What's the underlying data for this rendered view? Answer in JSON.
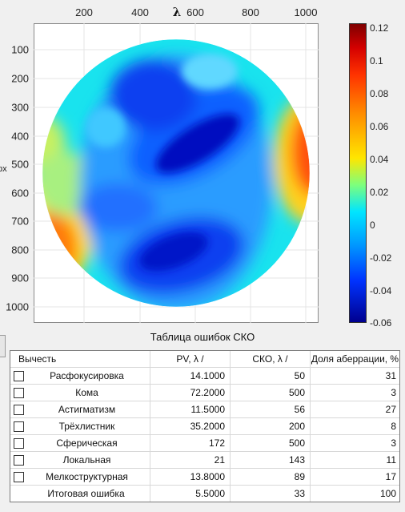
{
  "plot": {
    "x_axis_symbol": "λ",
    "left_axis_fragment": "px",
    "x_ticks": [
      "200",
      "400",
      "600",
      "800",
      "1000"
    ],
    "y_ticks": [
      "100",
      "200",
      "300",
      "400",
      "500",
      "600",
      "700",
      "800",
      "900",
      "1000"
    ],
    "colorbar_ticks": [
      "0.12",
      "0.1",
      "0.08",
      "0.06",
      "0.04",
      "0.02",
      "0",
      "-0.02",
      "-0.04",
      "-0.06"
    ],
    "colormap": "jet",
    "colorbar_range": [
      -0.06,
      0.12
    ],
    "x_range": [
      30,
      1080
    ],
    "y_range": [
      30,
      1080
    ]
  },
  "table": {
    "title": "Таблица ошибок СКО",
    "headers": [
      "Вычесть",
      "PV, λ /",
      "СКО, λ /",
      "Доля аберрации, %"
    ],
    "rows": [
      {
        "name": "Расфокусировка",
        "pv": "14.1000",
        "sko": "50",
        "share": "31"
      },
      {
        "name": "Кома",
        "pv": "72.2000",
        "sko": "500",
        "share": "3"
      },
      {
        "name": "Астигматизм",
        "pv": "11.5000",
        "sko": "56",
        "share": "27"
      },
      {
        "name": "Трёхлистник",
        "pv": "35.2000",
        "sko": "200",
        "share": "8"
      },
      {
        "name": "Сферическая",
        "pv": "172",
        "sko": "500",
        "share": "3"
      },
      {
        "name": "Локальная",
        "pv": "21",
        "sko": "143",
        "share": "11"
      },
      {
        "name": "Мелкоструктурная",
        "pv": "13.8000",
        "sko": "89",
        "share": "17"
      }
    ],
    "total": {
      "name": "Итоговая ошибка",
      "pv": "5.5000",
      "sko": "33",
      "share": "100"
    }
  }
}
